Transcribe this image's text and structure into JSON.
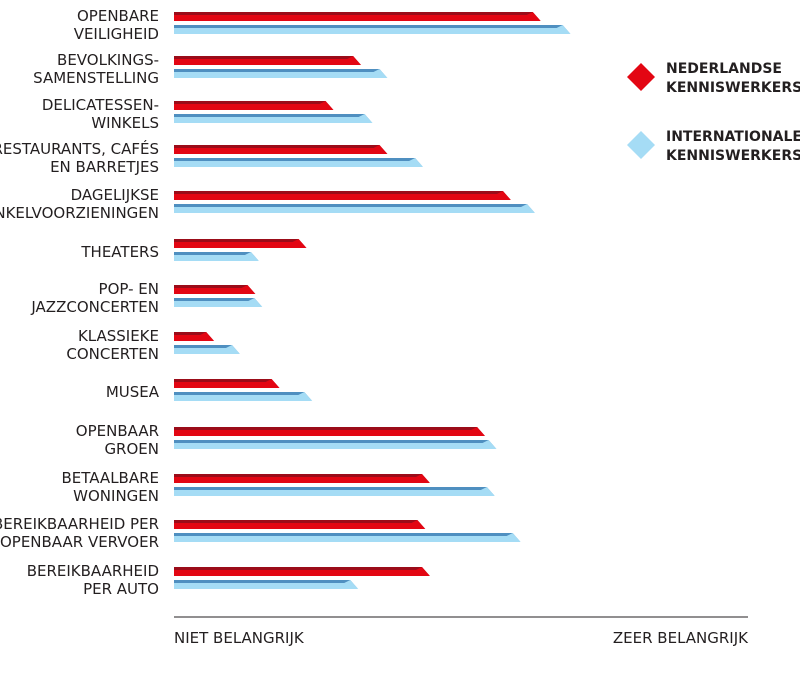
{
  "chart_data": {
    "type": "bar",
    "orientation": "horizontal",
    "categories": [
      [
        "OPENBARE",
        "VEILIGHEID"
      ],
      [
        "BEVOLKINGS-",
        "SAMENSTELLING"
      ],
      [
        "DELICATESSEN-",
        "WINKELS"
      ],
      [
        "RESTAURANTS, CAFÉS",
        "EN BARRETJES"
      ],
      [
        "DAGELIJKSE",
        "WINKELVOORZIENINGEN"
      ],
      [
        "THEATERS"
      ],
      [
        "POP- EN",
        "JAZZCONCERTEN"
      ],
      [
        "KLASSIEKE",
        "CONCERTEN"
      ],
      [
        "MUSEA"
      ],
      [
        "OPENBAAR",
        "GROEN"
      ],
      [
        "BETAALBARE",
        "WONINGEN"
      ],
      [
        "BEREIKBAARHEID PER",
        "OPENBAAR VERVOER"
      ],
      [
        "BEREIKBAARHEID",
        "PER AUTO"
      ]
    ],
    "series": [
      {
        "name": "NEDERLANDSE KENNISWERKERS",
        "name_lines": [
          "NEDERLANDSE",
          "KENNISWERKERS"
        ],
        "color_light": "#e30613",
        "color_dark": "#9b0c19",
        "values": [
          0.625,
          0.312,
          0.264,
          0.358,
          0.573,
          0.217,
          0.128,
          0.056,
          0.17,
          0.528,
          0.432,
          0.424,
          0.432
        ]
      },
      {
        "name": "INTERNATIONALE KENNISWERKERS",
        "name_lines": [
          "INTERNATIONALE",
          "KENNISWERKERS"
        ],
        "color_light": "#a5dcf5",
        "color_dark": "#4f8fc0",
        "values": [
          0.677,
          0.358,
          0.332,
          0.42,
          0.615,
          0.134,
          0.14,
          0.101,
          0.227,
          0.548,
          0.545,
          0.59,
          0.307
        ]
      }
    ],
    "xlim": [
      0,
      1
    ],
    "x_axis_left_label": "NIET BELANGRIJK",
    "x_axis_right_label": "ZEER BELANGRIJK",
    "legend_position": "top-right",
    "grid": false,
    "axis_color": "#231f20"
  }
}
